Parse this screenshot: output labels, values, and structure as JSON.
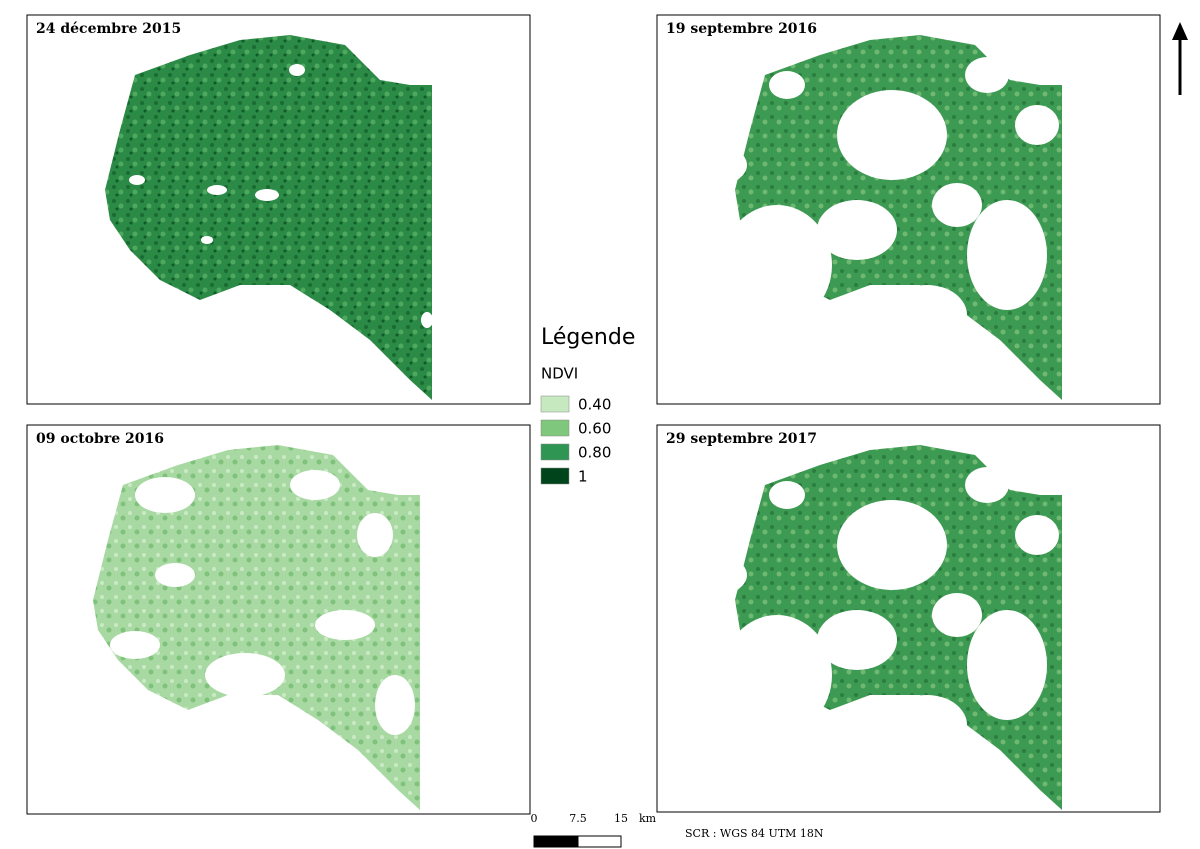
{
  "panels": [
    {
      "title": "24 décembre 2015"
    },
    {
      "title": "19 septembre 2016"
    },
    {
      "title": "09 octobre 2016"
    },
    {
      "title": "29 septembre 2017"
    }
  ],
  "legend": {
    "title": "Légende",
    "subtitle": "NDVI",
    "items": [
      {
        "label": "0.40",
        "color": "#c7e9c0"
      },
      {
        "label": "0.60",
        "color": "#7fc77c"
      },
      {
        "label": "0.80",
        "color": "#2e9553"
      },
      {
        "label": "1",
        "color": "#00441b"
      }
    ]
  },
  "scale_bar": {
    "labels": [
      "0",
      "7.5",
      "15"
    ],
    "unit": "km"
  },
  "crs": "SCR : WGS 84 UTM 18N"
}
